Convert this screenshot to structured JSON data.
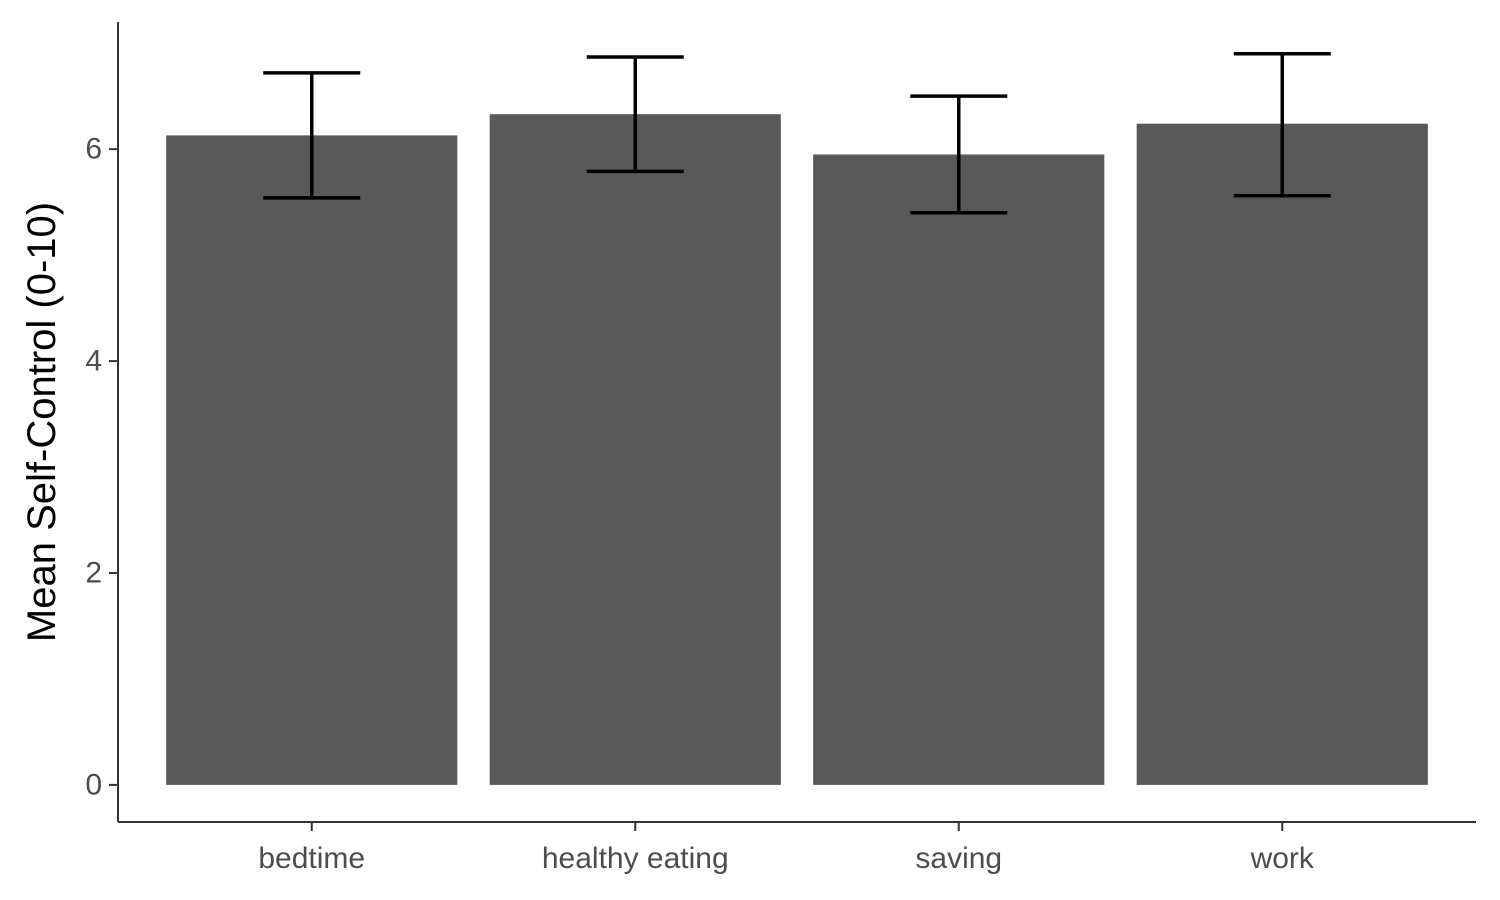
{
  "chart_data": {
    "type": "bar",
    "title": "",
    "xlabel": "",
    "ylabel": "Mean Self-Control (0-10)",
    "categories": [
      "bedtime",
      "healthy eating",
      "saving",
      "work"
    ],
    "values": [
      6.13,
      6.33,
      5.95,
      6.24
    ],
    "error_lower": [
      5.54,
      5.79,
      5.4,
      5.56
    ],
    "error_upper": [
      6.72,
      6.87,
      6.5,
      6.9
    ],
    "y_ticks": [
      0,
      2,
      4,
      6
    ],
    "y_tick_labels": [
      "0",
      "2",
      "4",
      "6"
    ],
    "ylim": [
      -0.35,
      7.2
    ],
    "grid": false,
    "legend": "none",
    "colors": {
      "bar": "#595959",
      "error_bar": "#000000",
      "axis": "#333333",
      "tick_label": "#4d4d4d",
      "axis_title": "#000000"
    }
  }
}
